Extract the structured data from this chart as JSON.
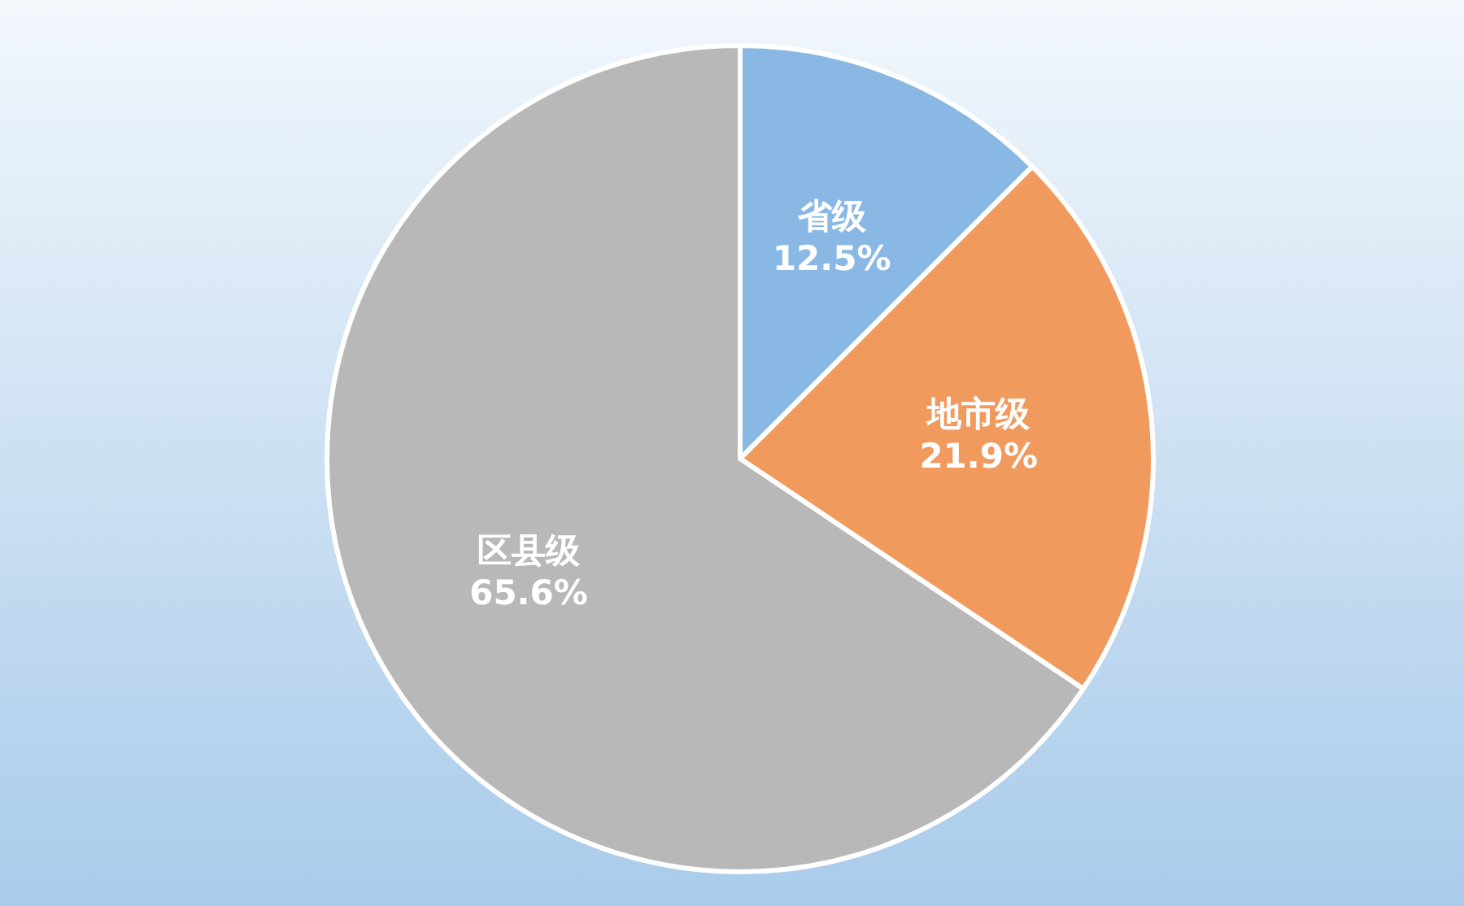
{
  "chart_data": {
    "type": "pie",
    "categories": [
      "省级",
      "地市级",
      "区县级"
    ],
    "values": [
      12.5,
      21.9,
      65.6
    ],
    "value_labels": [
      "12.5%",
      "21.9%",
      "65.6%"
    ],
    "colors": [
      "#8ab8e4",
      "#f09a5e",
      "#b8b8b8"
    ]
  }
}
